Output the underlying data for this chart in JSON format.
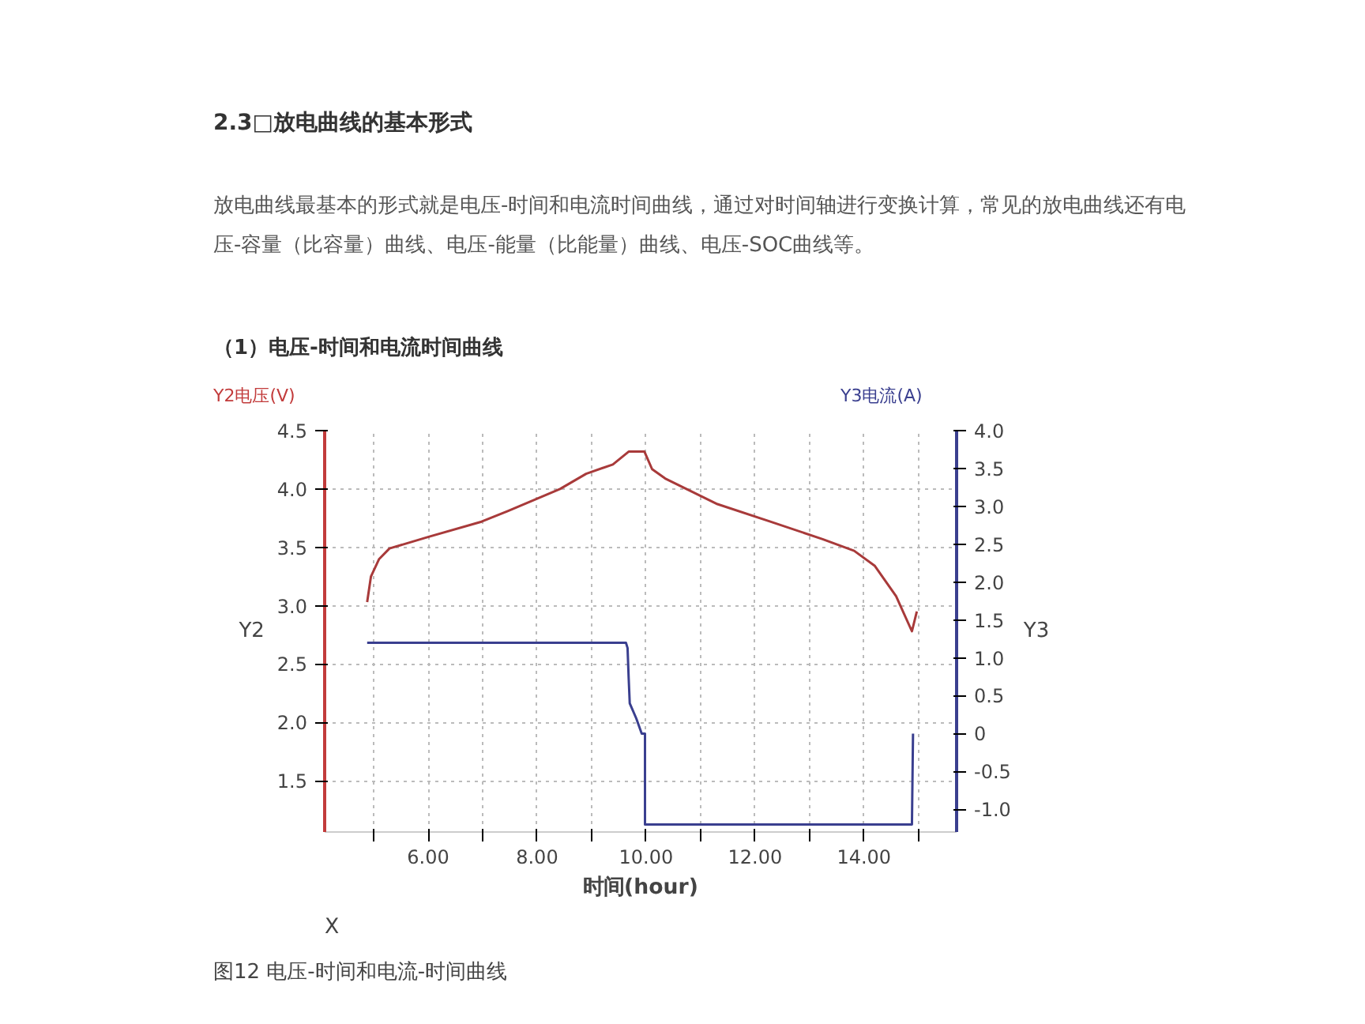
{
  "chart_data": {
    "type": "line",
    "title": "2.3□放电曲线的基本形式",
    "subtitle": "放电曲线最基本的形式就是电压-时间和电流时间曲线，通过对时间轴进行变换计算，常见的放电曲线还有电压-容量（比容量）曲线、电压-能量（比能量）曲线、电压-SOC曲线等。",
    "annotations": [
      "（1）电压-时间和电流时间曲线",
      "Y2",
      "Y3",
      "X",
      "图12 电压-时间和电流-时间曲线"
    ],
    "xlabel": "时间(hour)",
    "ylabel": "Y2电压(V)",
    "y2label": "Y3电流(A)",
    "xlim": [
      4.1,
      15.7
    ],
    "xticks": [
      {
        "value": 5,
        "label": null
      },
      {
        "value": 6,
        "label": "6.00"
      },
      {
        "value": 7,
        "label": null
      },
      {
        "value": 8,
        "label": "8.00"
      },
      {
        "value": 9,
        "label": null
      },
      {
        "value": 10,
        "label": "10.00"
      },
      {
        "value": 11,
        "label": null
      },
      {
        "value": 12,
        "label": "12.00"
      },
      {
        "value": 13,
        "label": null
      },
      {
        "value": 14,
        "label": "14.00"
      },
      {
        "value": 15,
        "label": null
      }
    ],
    "ylim": [
      1.06,
      4.5
    ],
    "yticks": [
      {
        "value": 1.5,
        "label": "1.5"
      },
      {
        "value": 2,
        "label": "2.0"
      },
      {
        "value": 2.5,
        "label": "2.5"
      },
      {
        "value": 3,
        "label": "3.0"
      },
      {
        "value": 3.5,
        "label": "3.5"
      },
      {
        "value": 4,
        "label": "4.0"
      },
      {
        "value": 4.5,
        "label": "4.5"
      }
    ],
    "y2lim": [
      -1.3,
      4.0
    ],
    "y2ticks": [
      {
        "value": -1,
        "label": "-1.0"
      },
      {
        "value": -0.5,
        "label": "-0.5"
      },
      {
        "value": 0,
        "label": "0"
      },
      {
        "value": 0.5,
        "label": "0.5"
      },
      {
        "value": 1,
        "label": "1.0"
      },
      {
        "value": 1.5,
        "label": "1.5"
      },
      {
        "value": 2,
        "label": "2.0"
      },
      {
        "value": 2.5,
        "label": "2.5"
      },
      {
        "value": 3,
        "label": "3.0"
      },
      {
        "value": 3.5,
        "label": "3.5"
      },
      {
        "value": 4,
        "label": "4.0"
      }
    ],
    "grid": true,
    "line_style": "solid",
    "marker": "none",
    "series": [
      {
        "color": "#a83a3a",
        "x": [
          4.88,
          4.95,
          5.1,
          5.29,
          6.01,
          6.98,
          7.46,
          8.42,
          8.9,
          9.39,
          9.68,
          9.97,
          10.11,
          10.35,
          10.83,
          11.31,
          12.28,
          13.24,
          13.82,
          14.2,
          14.59,
          14.88,
          14.97
        ],
        "values": [
          3.03,
          3.25,
          3.4,
          3.49,
          3.59,
          3.72,
          3.81,
          4.0,
          4.13,
          4.21,
          4.32,
          4.32,
          4.17,
          4.09,
          3.98,
          3.87,
          3.72,
          3.57,
          3.47,
          3.34,
          3.08,
          2.78,
          2.95
        ]
      },
      {
        "color": "#3a3f8f",
        "axis": "y2",
        "x": [
          4.88,
          9.63,
          9.66,
          9.68,
          9.7,
          9.82,
          9.92,
          9.98,
          9.98,
          14.88,
          14.9
        ],
        "values": [
          1.2,
          1.2,
          1.13,
          0.74,
          0.4,
          0.2,
          0,
          0,
          -1.2,
          -1.2,
          0
        ]
      }
    ]
  }
}
